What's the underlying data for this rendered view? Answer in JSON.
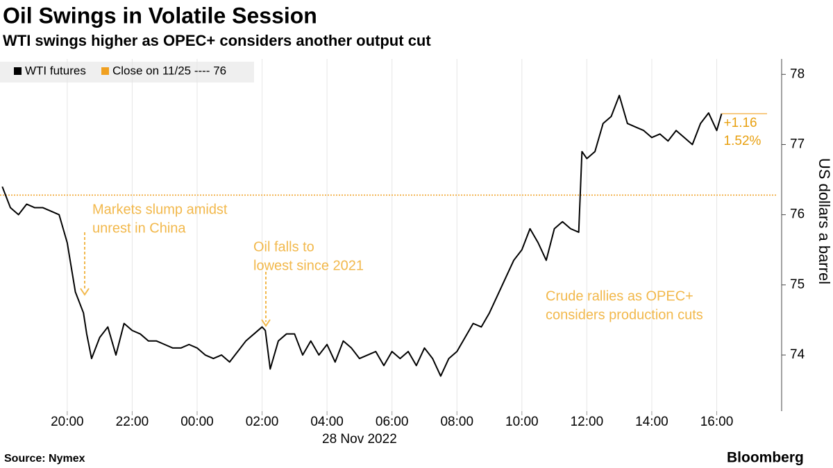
{
  "chart_data": {
    "type": "line",
    "title": "Oil Swings in Volatile Session",
    "subtitle": "WTI swings higher as OPEC+ considers another output cut",
    "source": "Source: Nymex",
    "brand": "Bloomberg",
    "y_label": "US dollars a barrel",
    "x_label": "28 Nov 2022",
    "grid": "x",
    "xlim": [
      17.93,
      41.87
    ],
    "ylim": [
      73.2,
      78.22
    ],
    "xticks": [
      {
        "value": 20,
        "label": "20:00"
      },
      {
        "value": 22,
        "label": "22:00"
      },
      {
        "value": 24,
        "label": "00:00"
      },
      {
        "value": 26,
        "label": "02:00"
      },
      {
        "value": 28,
        "label": "04:00"
      },
      {
        "value": 30,
        "label": "06:00"
      },
      {
        "value": 32,
        "label": "08:00"
      },
      {
        "value": 34,
        "label": "10:00"
      },
      {
        "value": 36,
        "label": "12:00"
      },
      {
        "value": 38,
        "label": "14:00"
      },
      {
        "value": 40,
        "label": "16:00"
      }
    ],
    "yticks": [
      74,
      75,
      76,
      77,
      78
    ],
    "x": [
      18.0,
      18.25,
      18.5,
      18.75,
      19.0,
      19.25,
      19.5,
      19.75,
      20.0,
      20.25,
      20.5,
      20.6,
      20.75,
      21.0,
      21.25,
      21.5,
      21.75,
      22.0,
      22.25,
      22.5,
      22.75,
      23.0,
      23.25,
      23.5,
      23.75,
      24.0,
      24.25,
      24.5,
      24.75,
      25.0,
      25.25,
      25.5,
      25.75,
      26.0,
      26.1,
      26.25,
      26.5,
      26.75,
      27.0,
      27.25,
      27.5,
      27.75,
      28.0,
      28.25,
      28.5,
      28.75,
      29.0,
      29.25,
      29.5,
      29.75,
      30.0,
      30.25,
      30.5,
      30.75,
      31.0,
      31.25,
      31.5,
      31.75,
      32.0,
      32.25,
      32.5,
      32.75,
      33.0,
      33.25,
      33.5,
      33.75,
      34.0,
      34.25,
      34.5,
      34.75,
      35.0,
      35.25,
      35.5,
      35.75,
      35.85,
      36.0,
      36.25,
      36.5,
      36.75,
      37.0,
      37.25,
      37.5,
      37.75,
      38.0,
      38.25,
      38.5,
      38.75,
      39.0,
      39.25,
      39.5,
      39.75,
      40.0,
      40.15
    ],
    "series": [
      {
        "name": "WTI futures",
        "color": "#000000",
        "values": [
          76.4,
          76.1,
          76.0,
          76.15,
          76.1,
          76.1,
          76.05,
          76.0,
          75.6,
          74.9,
          74.6,
          74.3,
          73.95,
          74.25,
          74.4,
          74.0,
          74.45,
          74.35,
          74.3,
          74.2,
          74.2,
          74.15,
          74.1,
          74.1,
          74.15,
          74.1,
          74.0,
          73.95,
          74.0,
          73.9,
          74.05,
          74.2,
          74.3,
          74.4,
          74.35,
          73.8,
          74.2,
          74.3,
          74.3,
          74.0,
          74.2,
          74.0,
          74.15,
          73.9,
          74.2,
          74.1,
          73.95,
          74.0,
          74.05,
          73.85,
          74.05,
          73.95,
          74.05,
          73.85,
          74.1,
          73.95,
          73.7,
          73.95,
          74.05,
          74.25,
          74.45,
          74.4,
          74.6,
          74.85,
          75.1,
          75.35,
          75.5,
          75.8,
          75.6,
          75.35,
          75.8,
          75.9,
          75.8,
          75.75,
          76.9,
          76.8,
          76.9,
          77.3,
          77.4,
          77.7,
          77.3,
          77.25,
          77.2,
          77.1,
          77.15,
          77.05,
          77.2,
          77.1,
          77.0,
          77.3,
          77.45,
          77.2,
          77.44
        ]
      }
    ],
    "reference": {
      "value": 76.28,
      "label": "Close on 11/25 ---- 76",
      "color": "#f0a020"
    },
    "change": {
      "value": 1.16,
      "label": "+1.16"
    },
    "change_percent": {
      "value": 1.52,
      "label": "1.52%"
    },
    "annotations": [
      {
        "lines": [
          "Markets slump amidst",
          "unrest in China"
        ]
      },
      {
        "lines": [
          "Oil falls to",
          "lowest since 2021"
        ]
      },
      {
        "lines": [
          "Crude rallies as OPEC+",
          "considers production cuts"
        ]
      }
    ]
  }
}
